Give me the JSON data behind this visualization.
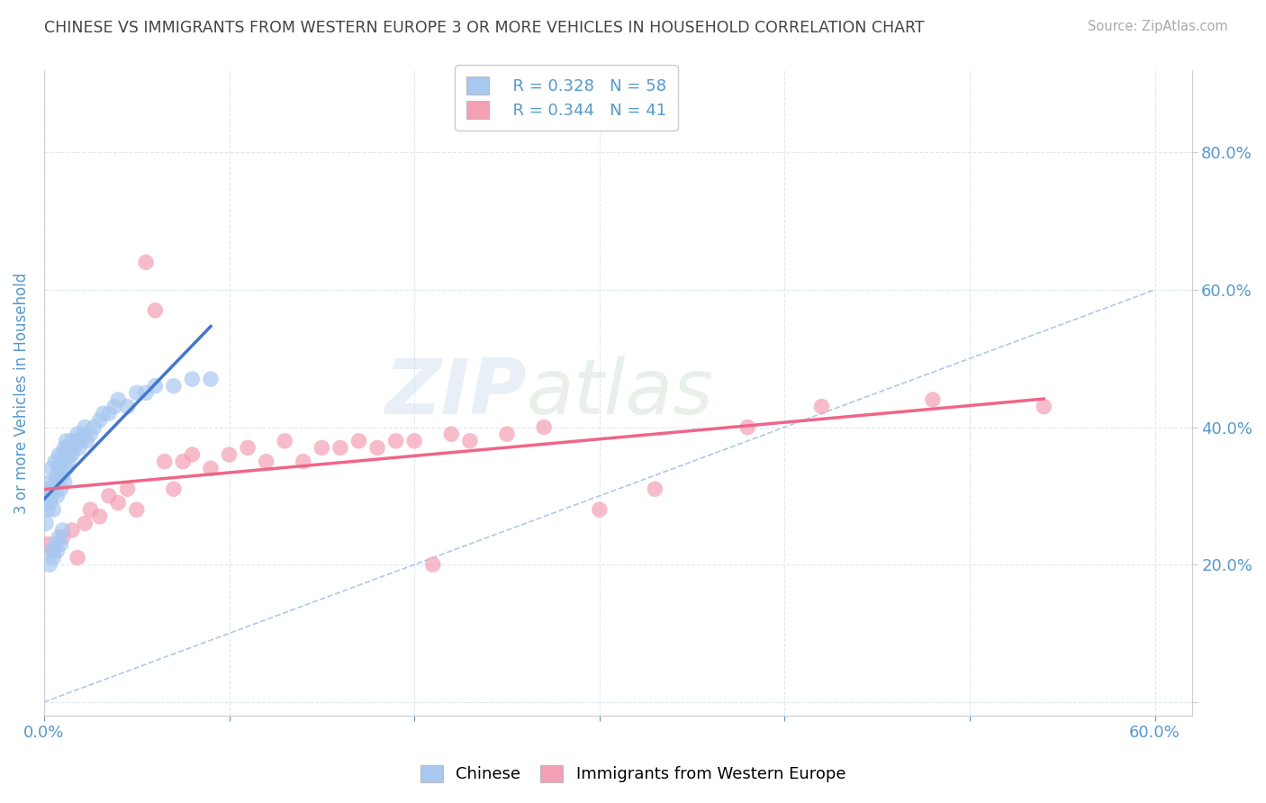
{
  "title": "CHINESE VS IMMIGRANTS FROM WESTERN EUROPE 3 OR MORE VEHICLES IN HOUSEHOLD CORRELATION CHART",
  "source": "Source: ZipAtlas.com",
  "ylabel": "3 or more Vehicles in Household",
  "xlim": [
    0.0,
    0.62
  ],
  "ylim": [
    -0.02,
    0.92
  ],
  "xticks": [
    0.0,
    0.1,
    0.2,
    0.3,
    0.4,
    0.5,
    0.6
  ],
  "yticks": [
    0.0,
    0.2,
    0.4,
    0.6,
    0.8
  ],
  "chinese_color": "#a8c8f0",
  "chinese_edge_color": "#88aadd",
  "western_europe_color": "#f4a0b4",
  "western_europe_edge_color": "#dd8099",
  "chinese_line_color": "#4477cc",
  "western_europe_line_color": "#ee6688",
  "diagonal_line_color": "#b0c8e8",
  "legend_R_chinese": "R = 0.328",
  "legend_N_chinese": "N = 58",
  "legend_R_western": "R = 0.344",
  "legend_N_western": "N = 41",
  "watermark_zip": "ZIP",
  "watermark_atlas": "atlas",
  "background_color": "#ffffff",
  "grid_color": "#e0e8f0",
  "title_color": "#444444",
  "tick_color": "#5599cc",
  "chinese_x": [
    0.001,
    0.002,
    0.002,
    0.003,
    0.003,
    0.004,
    0.004,
    0.005,
    0.005,
    0.006,
    0.006,
    0.007,
    0.007,
    0.008,
    0.008,
    0.009,
    0.009,
    0.01,
    0.01,
    0.011,
    0.011,
    0.012,
    0.012,
    0.013,
    0.013,
    0.014,
    0.015,
    0.015,
    0.016,
    0.017,
    0.018,
    0.019,
    0.02,
    0.021,
    0.022,
    0.023,
    0.025,
    0.027,
    0.03,
    0.032,
    0.035,
    0.038,
    0.04,
    0.045,
    0.05,
    0.055,
    0.06,
    0.07,
    0.08,
    0.09,
    0.003,
    0.004,
    0.005,
    0.006,
    0.007,
    0.008,
    0.009,
    0.01
  ],
  "chinese_y": [
    0.26,
    0.28,
    0.31,
    0.29,
    0.32,
    0.3,
    0.34,
    0.28,
    0.31,
    0.32,
    0.35,
    0.3,
    0.33,
    0.34,
    0.36,
    0.31,
    0.35,
    0.33,
    0.36,
    0.32,
    0.37,
    0.34,
    0.38,
    0.35,
    0.37,
    0.36,
    0.38,
    0.36,
    0.37,
    0.38,
    0.39,
    0.37,
    0.38,
    0.39,
    0.4,
    0.38,
    0.39,
    0.4,
    0.41,
    0.42,
    0.42,
    0.43,
    0.44,
    0.43,
    0.45,
    0.45,
    0.46,
    0.46,
    0.47,
    0.47,
    0.2,
    0.22,
    0.21,
    0.23,
    0.22,
    0.24,
    0.23,
    0.25
  ],
  "western_x": [
    0.002,
    0.005,
    0.01,
    0.015,
    0.018,
    0.022,
    0.025,
    0.03,
    0.035,
    0.04,
    0.045,
    0.05,
    0.055,
    0.06,
    0.065,
    0.07,
    0.075,
    0.08,
    0.09,
    0.1,
    0.11,
    0.12,
    0.13,
    0.14,
    0.15,
    0.16,
    0.17,
    0.18,
    0.19,
    0.2,
    0.21,
    0.22,
    0.23,
    0.25,
    0.27,
    0.3,
    0.33,
    0.38,
    0.42,
    0.48,
    0.54
  ],
  "western_y": [
    0.23,
    0.22,
    0.24,
    0.25,
    0.21,
    0.26,
    0.28,
    0.27,
    0.3,
    0.29,
    0.31,
    0.28,
    0.64,
    0.57,
    0.35,
    0.31,
    0.35,
    0.36,
    0.34,
    0.36,
    0.37,
    0.35,
    0.38,
    0.35,
    0.37,
    0.37,
    0.38,
    0.37,
    0.38,
    0.38,
    0.2,
    0.39,
    0.38,
    0.39,
    0.4,
    0.28,
    0.31,
    0.4,
    0.43,
    0.44,
    0.43
  ]
}
